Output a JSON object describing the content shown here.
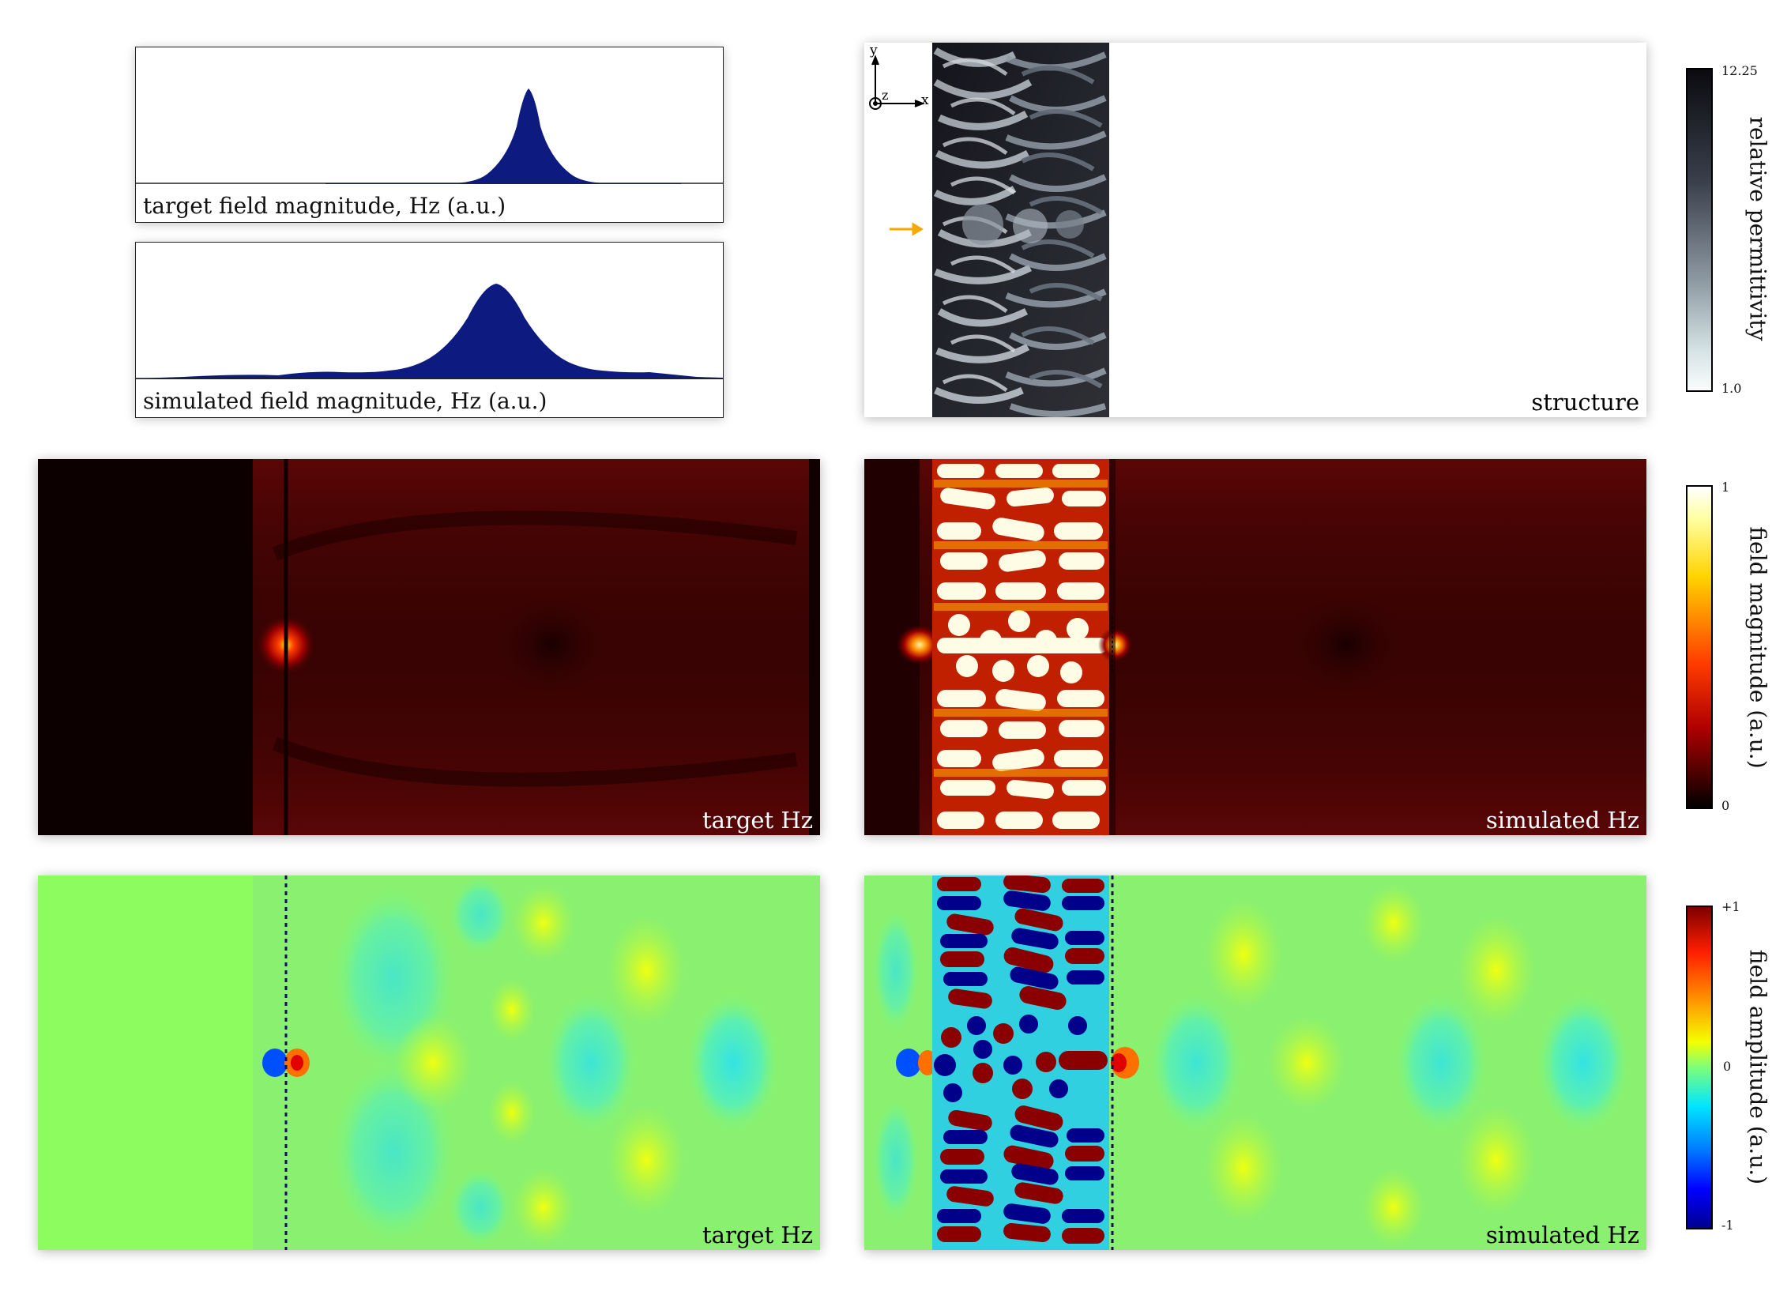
{
  "profiles": {
    "target": {
      "label": "target field magnitude, Hz (a.u.)"
    },
    "simulated": {
      "label": "simulated field magnitude, Hz (a.u.)"
    }
  },
  "structure": {
    "label": "structure",
    "axes": {
      "y": "y",
      "z": "z",
      "x": "x"
    }
  },
  "magnitude": {
    "target_label": "target Hz",
    "simulated_label": "simulated Hz"
  },
  "amplitude": {
    "target_label": "target Hz",
    "simulated_label": "simulated Hz"
  },
  "colorbars": {
    "permittivity": {
      "title": "relative permittivity",
      "max": "12.25",
      "min": "1.0"
    },
    "magnitude": {
      "title": "field magnitude (a.u.)",
      "max": "1",
      "min": "0"
    },
    "amplitude": {
      "title": "field amplitude (a.u.)",
      "max": "+1",
      "mid": "0",
      "min": "-1"
    }
  },
  "colors": {
    "profile_fill": "#0d1a80",
    "arrow": "#f5a800",
    "magnitude_bg": "#3a0303",
    "amplitude_bg": "#8cfc5e"
  }
}
